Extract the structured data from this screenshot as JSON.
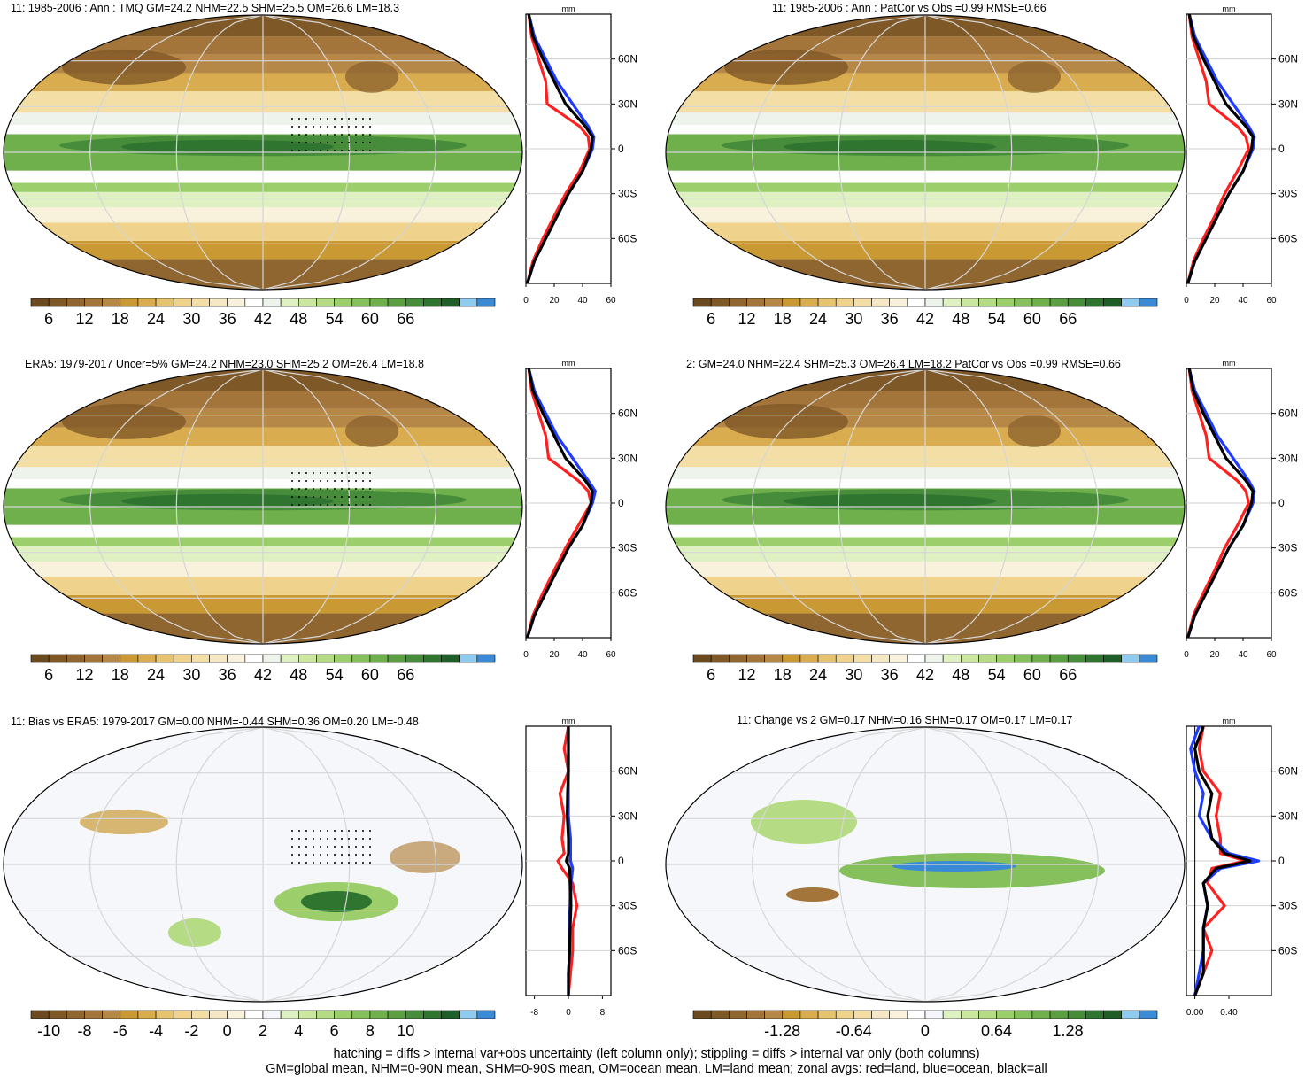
{
  "panels": [
    {
      "title": "11: 1985-2006 : Ann : TMQ GM=24.2 NHM=22.5 SHM=25.5 OM=26.6 LM=18.3",
      "kind": "abs",
      "stipple": true
    },
    {
      "title": "11: 1985-2006 : Ann : PatCor vs Obs =0.99 RMSE=0.66",
      "kind": "abs",
      "stipple": false
    },
    {
      "title": "ERA5: 1979-2017 Uncer=5% GM=24.2 NHM=23.0 SHM=25.2 OM=26.4 LM=18.8",
      "kind": "abs",
      "stipple": true
    },
    {
      "title": "2: GM=24.0 NHM=22.4 SHM=25.3 OM=26.4 LM=18.2 PatCor vs Obs =0.99 RMSE=0.66",
      "kind": "abs",
      "stipple": false
    },
    {
      "title": "11: Bias vs ERA5: 1979-2017 GM=0.00 NHM=-0.44 SHM=0.36 OM=0.20 LM=-0.48",
      "kind": "bias",
      "stipple": true
    },
    {
      "title": "11: Change vs 2 GM=0.17 NHM=0.16 SHM=0.17 OM=0.17 LM=0.17",
      "kind": "change",
      "stipple": false
    }
  ],
  "zonal_unit": "mm",
  "lat_ticks": [
    "60N",
    "30N",
    "0",
    "30S",
    "60S"
  ],
  "colorbars": {
    "abs": {
      "labels": [
        "6",
        "12",
        "18",
        "24",
        "30",
        "36",
        "42",
        "48",
        "54",
        "60",
        "66"
      ],
      "colors": [
        "#6b4a1f",
        "#7f5827",
        "#8f6530",
        "#a3753a",
        "#b68848",
        "#c99a34",
        "#d9ad4f",
        "#e6c36e",
        "#efd38c",
        "#f3dea5",
        "#f6e8c4",
        "#f8f1dc",
        "#ffffff",
        "#eef4ec",
        "#dff0c2",
        "#cce7a0",
        "#b5dc84",
        "#9ccf6c",
        "#86c05c",
        "#6fb04d",
        "#5c9e42",
        "#468c3a",
        "#2f7530",
        "#1f5e29",
        "#8fcbef",
        "#3b8ad6"
      ]
    },
    "bias": {
      "labels": [
        "-10",
        "-8",
        "-6",
        "-4",
        "-2",
        "0",
        "2",
        "4",
        "6",
        "8",
        "10"
      ],
      "colors": [
        "#6b4a1f",
        "#7f5827",
        "#8f6530",
        "#a3753a",
        "#b68848",
        "#c99a34",
        "#d9ad4f",
        "#e6c36e",
        "#efd38c",
        "#f3dea5",
        "#f6e8c4",
        "#f8f1dc",
        "#ffffff",
        "#f4f6fb",
        "#dff0c2",
        "#cce7a0",
        "#b5dc84",
        "#9ccf6c",
        "#86c05c",
        "#6fb04d",
        "#5c9e42",
        "#468c3a",
        "#2f7530",
        "#1f5e29",
        "#8fcbef",
        "#3b8ad6"
      ]
    },
    "change": {
      "labels": [
        "-1.28",
        "-0.64",
        "0",
        "0.64",
        "1.28"
      ],
      "colors": [
        "#6b4a1f",
        "#7f5827",
        "#8f6530",
        "#a3753a",
        "#b68848",
        "#c99a34",
        "#d9ad4f",
        "#e6c36e",
        "#efd38c",
        "#f3dea5",
        "#f6e8c4",
        "#f8f1dc",
        "#ffffff",
        "#f4f6fb",
        "#dff0c2",
        "#cce7a0",
        "#b5dc84",
        "#9ccf6c",
        "#86c05c",
        "#6fb04d",
        "#5c9e42",
        "#468c3a",
        "#2f7530",
        "#1f5e29",
        "#8fcbef",
        "#3b8ad6"
      ]
    }
  },
  "footer": {
    "line1": "hatching = diffs > internal var+obs uncertainty (left column only); stippling = diffs > internal var only (both columns)",
    "line2": "GM=global mean, NHM=0-90N mean, SHM=0-90S mean, OM=ocean mean, LM=land mean; zonal avgs: red=land, blue=ocean, black=all"
  },
  "chart_data": [
    {
      "type": "map+line",
      "title": "11: 1985-2006 : Ann : TMQ GM=24.2 NHM=22.5 SHM=25.5 OM=26.6 LM=18.3",
      "zonal": {
        "xlabel": "mm",
        "xlim": [
          0,
          60
        ],
        "xticks": [
          "0",
          "20",
          "40",
          "60"
        ],
        "ylim": [
          -90,
          90
        ],
        "lat": [
          -90,
          -75,
          -60,
          -45,
          -30,
          -15,
          0,
          8,
          15,
          30,
          45,
          60,
          75,
          90
        ],
        "series": [
          {
            "color": "red",
            "values": [
              1,
              5,
              12,
              20,
              28,
              38,
              45,
              44,
              38,
              15,
              14,
              9,
              4,
              2
            ]
          },
          {
            "color": "blue",
            "values": [
              1,
              6,
              14,
              22,
              30,
              40,
              47,
              48,
              44,
              33,
              22,
              14,
              6,
              2
            ]
          },
          {
            "color": "black",
            "values": [
              1,
              6,
              14,
              22,
              30,
              40,
              46,
              47,
              42,
              28,
              20,
              12,
              5,
              2
            ]
          }
        ]
      }
    },
    {
      "type": "map+line",
      "title": "11: 1985-2006 : Ann : PatCor vs Obs =0.99 RMSE=0.66",
      "zonal": {
        "xlabel": "mm",
        "xlim": [
          0,
          60
        ],
        "xticks": [
          "0",
          "20",
          "40",
          "60"
        ],
        "ylim": [
          -90,
          90
        ],
        "lat": [
          -90,
          -75,
          -60,
          -45,
          -30,
          -15,
          0,
          8,
          15,
          30,
          45,
          60,
          75,
          90
        ],
        "series": [
          {
            "color": "red",
            "values": [
              1,
              5,
              12,
              20,
              27,
              36,
              44,
              42,
              36,
              16,
              14,
              9,
              4,
              2
            ]
          },
          {
            "color": "blue",
            "values": [
              1,
              6,
              14,
              22,
              30,
              40,
              47,
              48,
              44,
              33,
              22,
              14,
              6,
              2
            ]
          },
          {
            "color": "black",
            "values": [
              1,
              6,
              14,
              22,
              30,
              40,
              46,
              47,
              42,
              28,
              20,
              12,
              5,
              2
            ]
          }
        ]
      }
    },
    {
      "type": "map+line",
      "title": "ERA5: 1979-2017 Uncer=5% GM=24.2 NHM=23.0 SHM=25.2 OM=26.4 LM=18.8",
      "zonal": {
        "xlabel": "mm",
        "xlim": [
          0,
          60
        ],
        "xticks": [
          "0",
          "20",
          "40",
          "60"
        ],
        "ylim": [
          -90,
          90
        ],
        "lat": [
          -90,
          -75,
          -60,
          -45,
          -30,
          -15,
          0,
          8,
          15,
          30,
          45,
          60,
          75,
          90
        ],
        "series": [
          {
            "color": "red",
            "values": [
              1,
              5,
              12,
              20,
              28,
              37,
              46,
              44,
              37,
              16,
              14,
              9,
              4,
              2
            ]
          },
          {
            "color": "blue",
            "values": [
              1,
              6,
              14,
              22,
              30,
              40,
              47,
              49,
              44,
              33,
              22,
              14,
              6,
              2
            ]
          },
          {
            "color": "black",
            "values": [
              1,
              6,
              14,
              22,
              30,
              40,
              46,
              47,
              42,
              28,
              20,
              12,
              5,
              2
            ]
          }
        ]
      }
    },
    {
      "type": "map+line",
      "title": "2: GM=24.0 NHM=22.4 SHM=25.3 OM=26.4 LM=18.2 PatCor vs Obs =0.99 RMSE=0.66",
      "zonal": {
        "xlabel": "mm",
        "xlim": [
          0,
          60
        ],
        "xticks": [
          "0",
          "20",
          "40",
          "60"
        ],
        "ylim": [
          -90,
          90
        ],
        "lat": [
          -90,
          -75,
          -60,
          -45,
          -30,
          -15,
          0,
          8,
          15,
          30,
          45,
          60,
          75,
          90
        ],
        "series": [
          {
            "color": "red",
            "values": [
              1,
              5,
              12,
              20,
              27,
              36,
              44,
              42,
              36,
              16,
              14,
              9,
              4,
              2
            ]
          },
          {
            "color": "blue",
            "values": [
              1,
              6,
              14,
              22,
              30,
              40,
              47,
              48,
              44,
              33,
              22,
              14,
              6,
              2
            ]
          },
          {
            "color": "black",
            "values": [
              1,
              6,
              14,
              22,
              30,
              40,
              46,
              47,
              42,
              28,
              20,
              12,
              5,
              2
            ]
          }
        ]
      }
    },
    {
      "type": "map+line",
      "title": "11: Bias vs ERA5: 1979-2017 GM=0.00 NHM=-0.44 SHM=0.36 OM=0.20 LM=-0.48",
      "zonal": {
        "xlabel": "mm",
        "xlim": [
          -10,
          10
        ],
        "xticks": [
          "-8",
          "0",
          "8"
        ],
        "ylim": [
          -90,
          90
        ],
        "lat": [
          -90,
          -75,
          -60,
          -45,
          -30,
          -15,
          -5,
          0,
          5,
          15,
          30,
          45,
          60,
          75,
          90
        ],
        "series": [
          {
            "color": "red",
            "values": [
              0,
              0.5,
              1,
              1,
              2,
              1,
              -1.5,
              -2.5,
              -1,
              -1.5,
              -1,
              -2,
              0,
              -1,
              0
            ]
          },
          {
            "color": "blue",
            "values": [
              0,
              0,
              0.3,
              0.3,
              0.5,
              0.6,
              1,
              0.5,
              0.5,
              0.5,
              0,
              0,
              0,
              0,
              0
            ]
          },
          {
            "color": "black",
            "values": [
              0,
              0,
              0.3,
              0.4,
              0.6,
              0.5,
              0.3,
              -0.5,
              0,
              0,
              -0.3,
              -0.2,
              0,
              0,
              0
            ]
          }
        ]
      }
    },
    {
      "type": "map+line",
      "title": "11: Change vs 2 GM=0.17 NHM=0.16 SHM=0.17 OM=0.17 LM=0.17",
      "zonal": {
        "xlabel": "mm",
        "xlim": [
          -0.1,
          0.9
        ],
        "xticks": [
          "0.00",
          "0.40"
        ],
        "ylim": [
          -90,
          90
        ],
        "lat": [
          -90,
          -75,
          -60,
          -45,
          -30,
          -15,
          -5,
          0,
          5,
          15,
          30,
          45,
          60,
          75,
          90
        ],
        "series": [
          {
            "color": "red",
            "values": [
              0,
              0.1,
              0.2,
              0.1,
              0.35,
              0.15,
              0.2,
              0.6,
              0.3,
              0.3,
              0.25,
              0.3,
              0.1,
              0.05,
              0.1
            ]
          },
          {
            "color": "blue",
            "values": [
              0,
              0.05,
              0.1,
              0.1,
              0.15,
              0.1,
              0.3,
              0.75,
              0.4,
              0.2,
              0.05,
              0.1,
              0.0,
              -0.05,
              0.05
            ]
          },
          {
            "color": "black",
            "values": [
              0,
              0.1,
              0.1,
              0.1,
              0.15,
              0.1,
              0.25,
              0.65,
              0.35,
              0.2,
              0.15,
              0.2,
              0.05,
              0.0,
              0.1
            ]
          }
        ]
      }
    }
  ]
}
